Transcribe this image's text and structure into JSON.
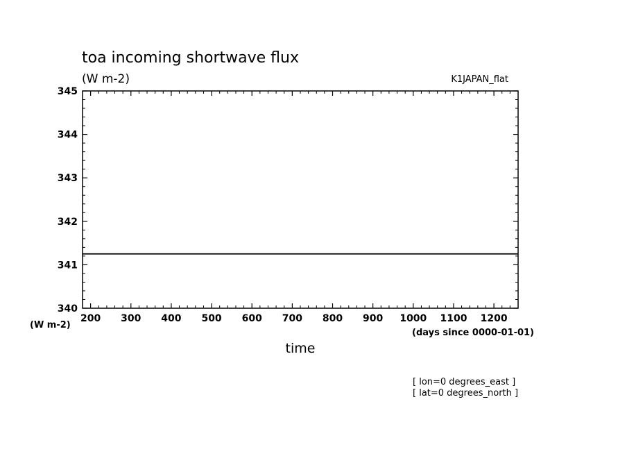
{
  "chart_data": {
    "type": "line",
    "title": "toa incoming shortwave flux",
    "units": "(W m-2)",
    "source_label": "K1JAPAN_flat",
    "xlabel": "time",
    "x_units": "(days since 0000-01-01)",
    "y_units": "(W m-2)",
    "xlim": [
      180,
      1260
    ],
    "ylim": [
      340,
      345
    ],
    "x_ticks": [
      200,
      300,
      400,
      500,
      600,
      700,
      800,
      900,
      1000,
      1100,
      1200
    ],
    "y_ticks": [
      340,
      341,
      342,
      343,
      344,
      345
    ],
    "grid": false,
    "series": [
      {
        "x": [
          180,
          1260
        ],
        "values": [
          341.25,
          341.25
        ]
      }
    ],
    "annotations": [
      "[ lon=0 degrees_east ]",
      "[ lat=0 degrees_north ]"
    ]
  }
}
